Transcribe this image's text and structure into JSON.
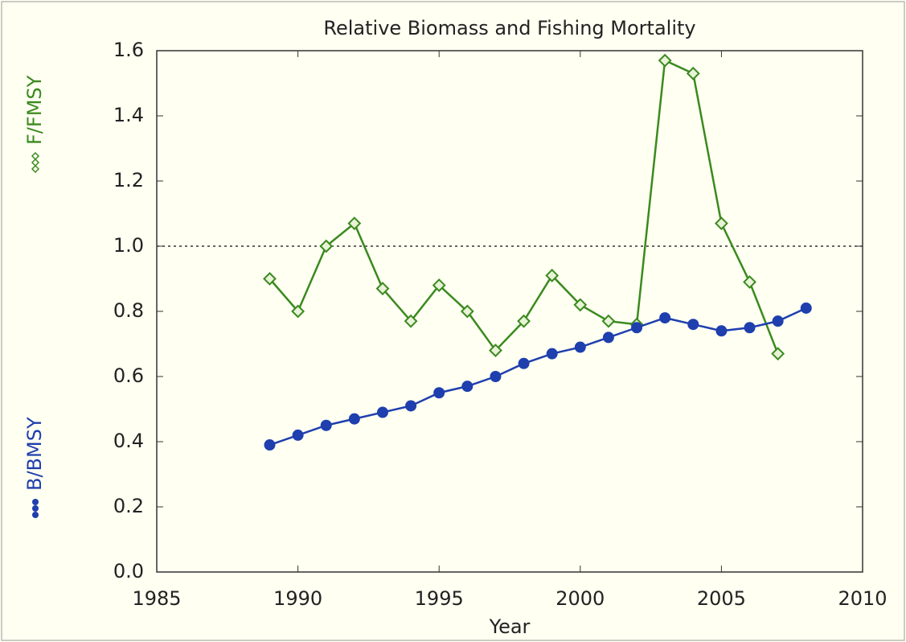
{
  "chart_data": {
    "type": "line",
    "title": "Relative Biomass and Fishing Mortality",
    "xlabel": "Year",
    "x": [
      1989,
      1990,
      1991,
      1992,
      1993,
      1994,
      1995,
      1996,
      1997,
      1998,
      1999,
      2000,
      2001,
      2002,
      2003,
      2004,
      2005,
      2006,
      2007,
      2008
    ],
    "series": [
      {
        "name": "F/FMSY",
        "color": "#3a8a1e",
        "marker": "diamond",
        "values": [
          0.9,
          0.8,
          1.0,
          1.07,
          0.87,
          0.77,
          0.88,
          0.8,
          0.68,
          0.77,
          0.91,
          0.82,
          0.77,
          0.76,
          1.57,
          1.53,
          1.07,
          0.89,
          0.67,
          null
        ]
      },
      {
        "name": "B/BMSY",
        "color": "#1f3fae",
        "marker": "circle",
        "values": [
          0.39,
          0.42,
          0.45,
          0.47,
          0.49,
          0.51,
          0.55,
          0.57,
          0.6,
          0.64,
          0.67,
          0.69,
          0.72,
          0.75,
          0.78,
          0.76,
          0.74,
          0.75,
          0.77,
          0.81
        ]
      }
    ],
    "xlim": [
      1985,
      2010
    ],
    "xticks": [
      1985,
      1990,
      1995,
      2000,
      2005,
      2010
    ],
    "ylim": [
      0,
      1.6
    ],
    "yticks": [
      {
        "value": 0,
        "label": "0.0"
      },
      0.2,
      0.4,
      0.6,
      0.8,
      {
        "value": 1,
        "label": "1.0"
      },
      1.2,
      1.4,
      1.6
    ],
    "reference_line": 1
  }
}
